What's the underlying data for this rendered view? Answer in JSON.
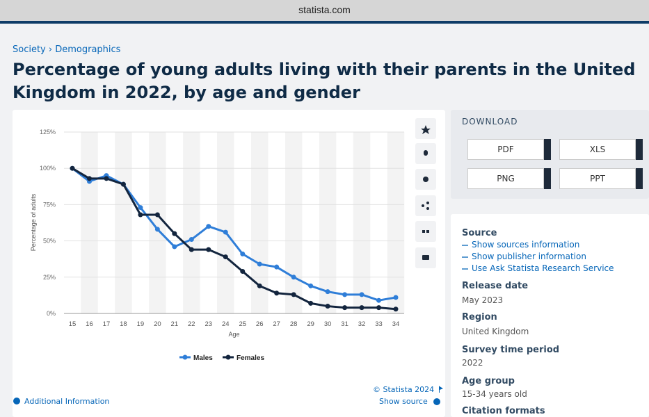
{
  "browser": {
    "url": "statista.com"
  },
  "breadcrumb": "Society › Demographics",
  "header": {
    "title": "Percentage of young adults living with their parents in the United Kingdom in 2022, by age and gender"
  },
  "chart_data": {
    "type": "line",
    "x_label": "Age",
    "y_label": "Percentage of adults",
    "categories": [
      "15",
      "16",
      "17",
      "18",
      "19",
      "20",
      "21",
      "22",
      "23",
      "24",
      "25",
      "26",
      "27",
      "28",
      "29",
      "30",
      "31",
      "32",
      "33",
      "34"
    ],
    "series": [
      {
        "name": "Males",
        "color": "#2f7ed8",
        "values": [
          100,
          91,
          95,
          89,
          73,
          58,
          46,
          51,
          60,
          56,
          41,
          34,
          32,
          25,
          19,
          15,
          13,
          13,
          9,
          11
        ]
      },
      {
        "name": "Females",
        "color": "#13253e",
        "values": [
          100,
          93,
          93,
          89,
          68,
          68,
          55,
          44,
          44,
          39,
          29,
          19,
          14,
          13,
          7,
          5,
          4,
          4,
          4,
          3
        ]
      }
    ],
    "ylim": [
      0,
      125
    ],
    "yticks": [
      {
        "value": 0,
        "label": "0%"
      },
      {
        "value": 25,
        "label": "25%"
      },
      {
        "value": 50,
        "label": "50%"
      },
      {
        "value": 75,
        "label": "75%"
      },
      {
        "value": 100,
        "label": "100%"
      },
      {
        "value": 125,
        "label": "125%"
      }
    ],
    "grid": true,
    "legend": "bottom"
  },
  "chart_footer": {
    "copyright": "© Statista 2024",
    "show_source": "Show source",
    "additional_info": "Additional Information"
  },
  "download": {
    "heading": "DOWNLOAD",
    "formats": [
      "PDF",
      "XLS",
      "PNG",
      "PPT"
    ]
  },
  "details": {
    "source_heading": "Source",
    "source_links": [
      "Show sources information",
      "Show publisher information",
      "Use Ask Statista Research Service"
    ],
    "items": [
      {
        "label": "Release date",
        "value": "May 2023"
      },
      {
        "label": "Region",
        "value": "United Kingdom"
      },
      {
        "label": "Survey time period",
        "value": "2022"
      },
      {
        "label": "Age group",
        "value": "15-34 years old"
      }
    ],
    "citation_heading": "Citation formats"
  }
}
